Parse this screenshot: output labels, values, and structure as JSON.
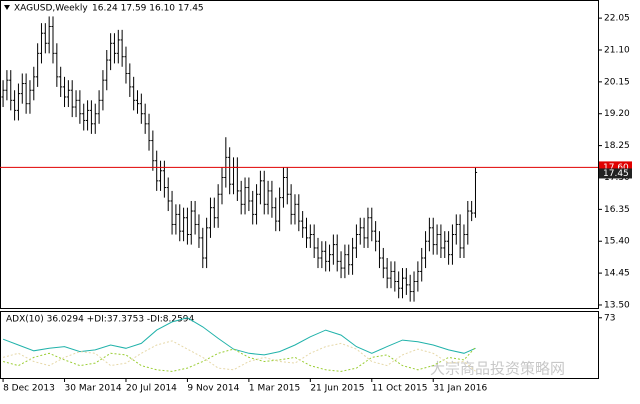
{
  "chart_data": {
    "type": "ohlc",
    "symbol": "XAGUSD,Weekly",
    "ohlc_text": "16.24 17.59 16.10 17.45",
    "color": "#000000",
    "open": [
      19.7,
      19.9,
      20.2,
      19.6,
      19.3,
      19.8,
      20.1,
      19.5,
      19.9,
      20.3,
      21.0,
      21.6,
      21.3,
      21.8,
      21.0,
      20.3,
      20.0,
      19.7,
      19.9,
      19.4,
      19.6,
      19.2,
      19.0,
      19.3,
      18.9,
      19.2,
      19.6,
      20.2,
      20.8,
      21.3,
      21.0,
      21.4,
      20.9,
      20.4,
      20.0,
      19.6,
      19.5,
      19.2,
      18.9,
      18.4,
      17.8,
      17.2,
      17.5,
      17.0,
      16.6,
      15.9,
      16.2,
      15.7,
      16.1,
      15.6,
      16.3,
      15.9,
      15.5,
      14.9,
      15.8,
      16.4,
      16.1,
      16.8,
      17.3,
      17.9,
      17.1,
      17.6,
      16.9,
      16.5,
      17.0,
      16.6,
      16.2,
      16.8,
      17.2,
      16.5,
      16.9,
      16.4,
      16.0,
      16.7,
      17.3,
      16.8,
      16.2,
      16.5,
      16.0,
      15.8,
      15.5,
      15.6,
      15.2,
      14.9,
      15.1,
      14.8,
      15.0,
      15.3,
      14.8,
      14.6,
      15.0,
      14.7,
      15.2,
      15.6,
      15.8,
      15.5,
      16.1,
      15.7,
      15.4,
      14.9,
      14.6,
      14.3,
      14.5,
      14.2,
      14.0,
      14.3,
      14.1,
      13.9,
      14.2,
      14.5,
      14.9,
      15.4,
      15.8,
      15.3,
      15.6,
      15.2,
      15.4,
      15.0,
      15.6,
      15.9,
      15.2,
      15.6,
      16.3,
      16.24
    ],
    "high": [
      20.2,
      20.5,
      20.5,
      19.9,
      20.1,
      20.4,
      20.4,
      20.2,
      20.6,
      21.3,
      21.9,
      21.9,
      22.1,
      22.1,
      21.3,
      20.6,
      20.3,
      20.2,
      20.2,
      19.9,
      19.9,
      19.5,
      19.6,
      19.6,
      19.5,
      19.9,
      20.5,
      21.1,
      21.6,
      21.6,
      21.7,
      21.7,
      21.2,
      20.7,
      20.3,
      19.9,
      19.8,
      19.5,
      19.2,
      18.7,
      18.1,
      17.8,
      17.8,
      17.3,
      16.9,
      16.5,
      16.5,
      16.4,
      16.4,
      16.6,
      16.6,
      16.2,
      15.8,
      16.1,
      16.7,
      16.7,
      17.1,
      17.6,
      18.5,
      18.2,
      17.9,
      17.9,
      17.2,
      17.3,
      17.3,
      16.9,
      17.1,
      17.5,
      17.5,
      17.2,
      17.2,
      16.7,
      17.0,
      17.6,
      17.6,
      17.1,
      16.8,
      16.8,
      16.3,
      16.1,
      15.9,
      15.9,
      15.5,
      15.4,
      15.4,
      15.3,
      15.6,
      15.6,
      15.1,
      15.3,
      15.3,
      15.5,
      15.9,
      16.1,
      16.1,
      16.4,
      16.4,
      16.0,
      15.7,
      15.2,
      14.9,
      14.8,
      14.8,
      14.5,
      14.6,
      14.6,
      14.4,
      14.5,
      14.8,
      15.2,
      15.7,
      16.1,
      16.1,
      15.9,
      15.9,
      15.7,
      15.7,
      15.9,
      16.2,
      16.2,
      15.9,
      16.6,
      16.6,
      17.59
    ],
    "low": [
      19.4,
      19.6,
      19.3,
      19.0,
      19.0,
      19.5,
      19.2,
      19.2,
      19.6,
      20.0,
      20.7,
      21.0,
      21.0,
      20.7,
      20.0,
      19.7,
      19.4,
      19.4,
      19.1,
      19.1,
      18.9,
      18.7,
      18.7,
      18.6,
      18.6,
      18.9,
      19.3,
      19.9,
      20.5,
      20.7,
      20.7,
      20.6,
      20.1,
      19.7,
      19.3,
      19.2,
      18.9,
      18.6,
      18.1,
      17.5,
      16.9,
      16.9,
      16.7,
      16.3,
      15.6,
      15.6,
      15.4,
      15.4,
      15.3,
      15.3,
      15.6,
      15.2,
      14.6,
      14.6,
      15.5,
      15.8,
      15.8,
      16.5,
      17.0,
      16.8,
      16.8,
      16.6,
      16.2,
      16.2,
      16.3,
      15.9,
      15.9,
      16.5,
      16.2,
      16.2,
      16.1,
      15.7,
      15.7,
      16.4,
      16.5,
      15.9,
      15.9,
      15.7,
      15.5,
      15.2,
      15.2,
      14.9,
      14.6,
      14.6,
      14.5,
      14.5,
      14.7,
      14.5,
      14.3,
      14.3,
      14.4,
      14.4,
      14.9,
      15.3,
      15.2,
      15.2,
      15.4,
      15.1,
      14.6,
      14.3,
      14.0,
      14.0,
      13.9,
      13.7,
      13.7,
      13.8,
      13.6,
      13.6,
      13.9,
      14.2,
      14.6,
      15.1,
      15.0,
      15.0,
      14.9,
      14.9,
      14.7,
      14.7,
      15.3,
      14.9,
      14.9,
      15.3,
      16.0,
      16.1
    ],
    "close": [
      19.9,
      20.2,
      19.6,
      19.3,
      19.8,
      20.1,
      19.5,
      19.9,
      20.3,
      21.0,
      21.6,
      21.3,
      21.8,
      21.0,
      20.3,
      20.0,
      19.7,
      19.9,
      19.4,
      19.6,
      19.2,
      19.0,
      19.3,
      18.9,
      19.2,
      19.6,
      20.2,
      20.8,
      21.3,
      21.0,
      21.4,
      20.9,
      20.4,
      20.0,
      19.6,
      19.5,
      19.2,
      18.9,
      18.4,
      17.8,
      17.2,
      17.5,
      17.0,
      16.6,
      15.9,
      16.2,
      15.7,
      16.1,
      15.6,
      16.3,
      15.9,
      15.5,
      14.9,
      15.8,
      16.4,
      16.1,
      16.8,
      17.3,
      17.9,
      17.1,
      17.6,
      16.9,
      16.5,
      17.0,
      16.6,
      16.2,
      16.8,
      17.2,
      16.5,
      16.9,
      16.4,
      16.0,
      16.7,
      17.3,
      16.8,
      16.2,
      16.5,
      16.0,
      15.8,
      15.5,
      15.6,
      15.2,
      14.9,
      15.1,
      14.8,
      15.0,
      15.3,
      14.8,
      14.6,
      15.0,
      14.7,
      15.2,
      15.6,
      15.8,
      15.5,
      16.1,
      15.7,
      15.4,
      14.9,
      14.6,
      14.3,
      14.5,
      14.2,
      14.0,
      14.3,
      14.1,
      13.9,
      14.2,
      14.5,
      14.9,
      15.4,
      15.8,
      15.3,
      15.6,
      15.2,
      15.4,
      15.0,
      15.6,
      15.9,
      15.2,
      15.6,
      16.3,
      16.24,
      17.45
    ],
    "xlim": [
      -0.8,
      154.9
    ],
    "xticks": [
      {
        "value": 0,
        "label": "8 Dec 2013"
      },
      {
        "value": 16,
        "label": "30 Mar 2014"
      },
      {
        "value": 32,
        "label": "20 Jul 2014"
      },
      {
        "value": 48,
        "label": "9 Nov 2014"
      },
      {
        "value": 64,
        "label": "1 Mar 2015"
      },
      {
        "value": 80,
        "label": "21 Jun 2015"
      },
      {
        "value": 96,
        "label": "11 Oct 2015"
      },
      {
        "value": 112,
        "label": "31 Jan 2016"
      }
    ],
    "ylim": [
      13.41,
      22.59
    ],
    "yticks": [
      22.05,
      {
        "value": 21.1,
        "label": "21.10"
      },
      20.15,
      {
        "value": 19.2,
        "label": "19.20"
      },
      18.25,
      {
        "value": 17.3,
        "label": "17.30"
      },
      16.35,
      {
        "value": 15.4,
        "label": "15.40"
      },
      14.45,
      {
        "value": 13.5,
        "label": "13.50"
      }
    ],
    "hline": {
      "value": 17.6,
      "label": "17.60",
      "color": "#e00000"
    },
    "last_price": {
      "value": 17.45,
      "label": "17.45"
    },
    "indicator": {
      "label": "ADX(10) 36.0294 +DI:37.3753 -DI:8.2594",
      "ylim": [
        0,
        80
      ],
      "yticks": [
        73
      ],
      "x": [
        0,
        4,
        8,
        12,
        16,
        20,
        24,
        28,
        32,
        36,
        40,
        44,
        48,
        52,
        56,
        60,
        64,
        68,
        72,
        76,
        80,
        84,
        88,
        92,
        96,
        100,
        104,
        108,
        112,
        116,
        120,
        123
      ],
      "series": [
        {
          "color": "#20b2aa",
          "dash": false,
          "values": [
            47,
            40,
            33,
            36,
            38,
            32,
            34,
            40,
            36,
            42,
            58,
            68,
            73,
            62,
            48,
            35,
            30,
            28,
            32,
            40,
            50,
            58,
            52,
            38,
            30,
            38,
            46,
            44,
            40,
            34,
            30,
            36.03
          ]
        },
        {
          "color": "#9acd32",
          "dash": true,
          "values": [
            20,
            15,
            25,
            30,
            22,
            15,
            18,
            30,
            28,
            15,
            10,
            8,
            12,
            20,
            30,
            35,
            25,
            20,
            22,
            25,
            15,
            10,
            8,
            12,
            25,
            28,
            15,
            10,
            15,
            25,
            22,
            37.38
          ]
        },
        {
          "color": "#e6d8a8",
          "dash": true,
          "values": [
            25,
            30,
            20,
            15,
            25,
            32,
            30,
            15,
            18,
            30,
            40,
            45,
            35,
            25,
            12,
            10,
            20,
            25,
            20,
            18,
            30,
            38,
            42,
            35,
            20,
            15,
            28,
            35,
            30,
            18,
            20,
            8.26
          ]
        }
      ]
    },
    "watermark": "大宗商品投资策略网"
  }
}
